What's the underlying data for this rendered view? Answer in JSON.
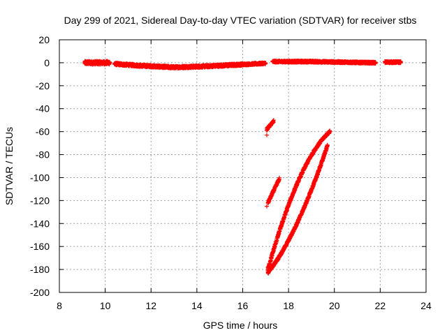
{
  "chart_data": {
    "type": "scatter",
    "title": "Day 299 of 2021, Sidereal Day-to-day VTEC variation (SDTVAR) for receiver stbs",
    "xlabel": "GPS time / hours",
    "ylabel": "SDTVAR / TECUs",
    "xlim": [
      8,
      24
    ],
    "ylim": [
      -200,
      20
    ],
    "xticks": [
      8,
      10,
      12,
      14,
      16,
      18,
      20,
      22,
      24
    ],
    "yticks": [
      20,
      0,
      -20,
      -40,
      -60,
      -80,
      -100,
      -120,
      -140,
      -160,
      -180,
      -200
    ],
    "grid": true,
    "marker": "plus",
    "color": "#ff0000",
    "series": [
      {
        "segments": [
          {
            "x_start": 9.1,
            "x_end": 10.2,
            "y_start": 0,
            "y_end": 0,
            "spread": 3
          },
          {
            "x_start": 10.4,
            "x_end": 11.5,
            "y_start": -1,
            "y_end": -2.5,
            "spread": 2
          },
          {
            "x_start": 11.5,
            "x_end": 13.0,
            "y_start": -2.5,
            "y_end": -4,
            "spread": 2
          },
          {
            "x_start": 13.0,
            "x_end": 14.5,
            "y_start": -4,
            "y_end": -3,
            "spread": 2
          },
          {
            "x_start": 14.5,
            "x_end": 16.0,
            "y_start": -3,
            "y_end": -1.5,
            "spread": 2
          },
          {
            "x_start": 16.0,
            "x_end": 17.0,
            "y_start": -1.5,
            "y_end": -0.5,
            "spread": 1.5
          },
          {
            "x_start": 17.3,
            "x_end": 19.0,
            "y_start": 1,
            "y_end": 1,
            "spread": 1.5
          },
          {
            "x_start": 19.0,
            "x_end": 21.8,
            "y_start": 1,
            "y_end": 0,
            "spread": 1.5
          },
          {
            "x_start": 22.2,
            "x_end": 22.9,
            "y_start": 0.5,
            "y_end": 0.5,
            "spread": 1.5
          },
          {
            "x_start": 17.05,
            "x_end": 17.35,
            "y_start": -58,
            "y_end": -51,
            "spread": 2
          },
          {
            "x_start": 17.1,
            "x_end": 17.6,
            "y_start": -122,
            "y_end": -101,
            "spread": 2
          },
          {
            "x_start": 17.1,
            "x_end": 19.8,
            "y_start": -180,
            "y_end": -60,
            "spread": 2,
            "curve": 0.15
          },
          {
            "x_start": 17.1,
            "x_end": 19.7,
            "y_start": -183,
            "y_end": -72,
            "spread": 2,
            "curve": -0.1
          }
        ],
        "points": [
          {
            "x": 17.05,
            "y": -63
          },
          {
            "x": 17.05,
            "y": -125
          },
          {
            "x": 17.1,
            "y": -178
          }
        ]
      }
    ]
  }
}
